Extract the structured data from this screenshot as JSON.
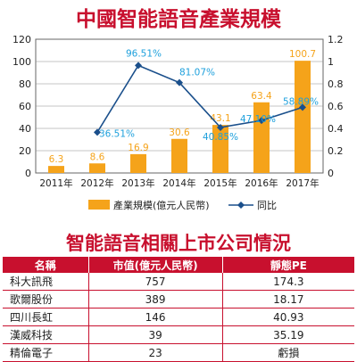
{
  "chart_data": {
    "type": "bar",
    "title": "中國智能語音產業規模",
    "categories": [
      "2011年",
      "2012年",
      "2013年",
      "2014年",
      "2015年",
      "2016年",
      "2017年"
    ],
    "series": [
      {
        "name": "產業規模(億元人民幣)",
        "type": "bar",
        "axis": "left",
        "color": "#f5a31a",
        "values": [
          6.3,
          8.6,
          16.9,
          30.6,
          43.1,
          63.4,
          100.7
        ],
        "labels": [
          "6.3",
          "8.6",
          "16.9",
          "30.6",
          "43.1",
          "63.4",
          "100.7"
        ]
      },
      {
        "name": "同比",
        "type": "line",
        "axis": "right",
        "color": "#1a4f8b",
        "label_color": "#1ea0dc",
        "values": [
          null,
          0.3651,
          0.9651,
          0.8107,
          0.4085,
          0.471,
          0.5889
        ],
        "labels": [
          "",
          "36.51%",
          "96.51%",
          "81.07%",
          "40.85%",
          "47.10%",
          "58.89%"
        ]
      }
    ],
    "y_left": {
      "min": 0,
      "max": 120,
      "ticks": [
        "0",
        "20",
        "40",
        "60",
        "80",
        "100",
        "120"
      ]
    },
    "y_right": {
      "min": 0,
      "max": 1.2,
      "ticks": [
        "0",
        "0.2",
        "0.4",
        "0.6",
        "0.8",
        "1",
        "1.2"
      ]
    },
    "grid": true,
    "legend_position": "bottom"
  },
  "table": {
    "title": "智能語音相關上市公司情況",
    "headers": [
      "名稱",
      "市值(億元人民幣)",
      "靜態PE"
    ],
    "rows": [
      [
        "科大訊飛",
        "757",
        "174.3"
      ],
      [
        "歌爾股份",
        "389",
        "18.17"
      ],
      [
        "四川長虹",
        "146",
        "40.93"
      ],
      [
        "漢威科技",
        "39",
        "35.19"
      ],
      [
        "精倫電子",
        "23",
        "虧損"
      ]
    ],
    "header_color": "#c8102e"
  }
}
